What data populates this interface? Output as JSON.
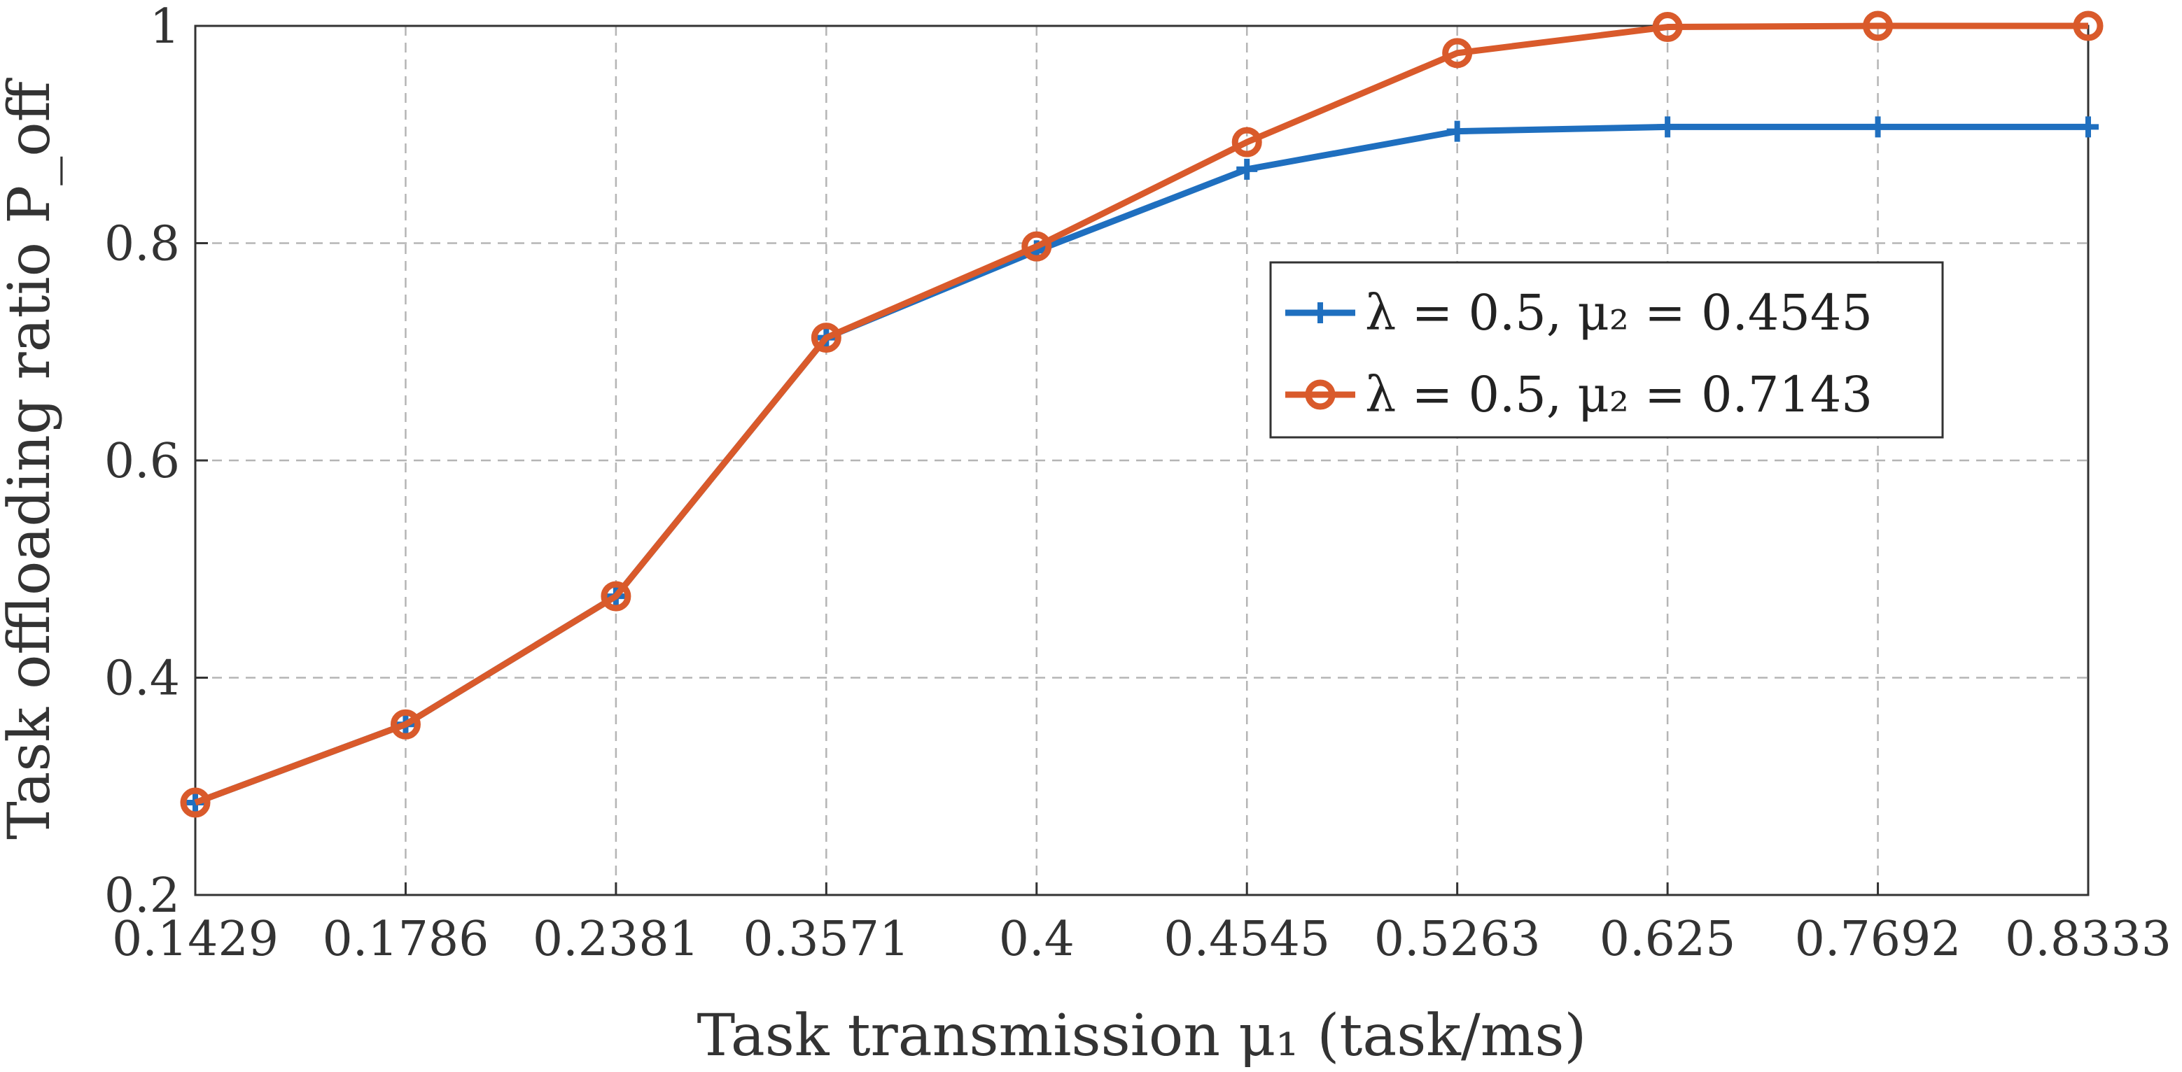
{
  "chart_data": {
    "type": "line",
    "xlabel": "Task transmission μ₁ (task/ms)",
    "ylabel": "Task offloading ratio P_off",
    "categories": [
      "0.1429",
      "0.1786",
      "0.2381",
      "0.3571",
      "0.4",
      "0.4545",
      "0.5263",
      "0.625",
      "0.7692",
      "0.8333"
    ],
    "ylim": [
      0.2,
      1.0
    ],
    "yticks": [
      "0.2",
      "0.4",
      "0.6",
      "0.8",
      "1"
    ],
    "grid": true,
    "legend_position": "right",
    "series": [
      {
        "name": "λ = 0.5, μ₂ = 0.4545",
        "color": "#1f6fbf",
        "marker": "plus",
        "values": [
          0.285,
          0.357,
          0.475,
          0.713,
          0.793,
          0.868,
          0.903,
          0.907,
          0.907,
          0.907
        ]
      },
      {
        "name": "λ = 0.5, μ₂ = 0.7143",
        "color": "#d95a2b",
        "marker": "circle",
        "values": [
          0.285,
          0.357,
          0.475,
          0.713,
          0.797,
          0.893,
          0.975,
          0.999,
          1.0,
          1.0
        ]
      }
    ]
  }
}
